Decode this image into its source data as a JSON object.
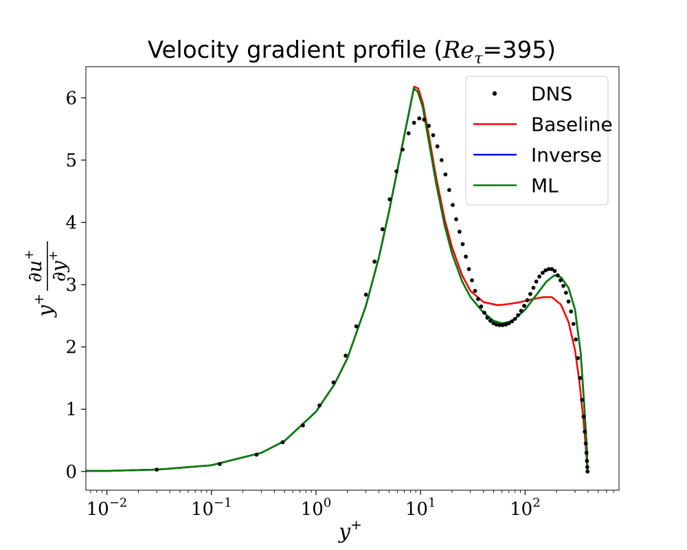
{
  "chart_data": {
    "type": "line",
    "title": {
      "prefix": "Velocity gradient profile (",
      "math": "Re",
      "math_sub": "τ",
      "suffix": "=395)"
    },
    "xlabel": {
      "base": "y",
      "sup": "+"
    },
    "ylabel": {
      "factor": "y",
      "factor_sup": "+",
      "num": "∂u",
      "num_sup": "+",
      "den": "∂y",
      "den_sup": "+"
    },
    "x_scale": "log",
    "xlim": [
      0.0063,
      790
    ],
    "ylim": [
      -0.3,
      6.5
    ],
    "x_ticks": [
      {
        "value": 0.01,
        "base": "10",
        "exp": "−2"
      },
      {
        "value": 0.1,
        "base": "10",
        "exp": "−1"
      },
      {
        "value": 1,
        "base": "10",
        "exp": "0"
      },
      {
        "value": 10,
        "base": "10",
        "exp": "1"
      },
      {
        "value": 100,
        "base": "10",
        "exp": "2"
      }
    ],
    "y_ticks": [
      0,
      1,
      2,
      3,
      4,
      5,
      6
    ],
    "grid": false,
    "legend_position": "top-right",
    "series": [
      {
        "name": "DNS",
        "style": "markers",
        "color": "#000000",
        "x": [
          0.03,
          0.12,
          0.27,
          0.48,
          0.75,
          1.08,
          1.47,
          1.92,
          2.43,
          3.0,
          3.63,
          4.32,
          5.07,
          5.88,
          6.75,
          7.68,
          8.67,
          9.72,
          10.8,
          12.0,
          13.2,
          14.5,
          15.9,
          17.3,
          18.8,
          20.3,
          21.9,
          23.6,
          25.3,
          27.1,
          29.0,
          31.0,
          33.2,
          35.5,
          38.0,
          40.7,
          43.5,
          46.5,
          49.8,
          53.2,
          57.0,
          61.0,
          65.3,
          69.9,
          74.8,
          80.0,
          85.6,
          91.6,
          98.0,
          105,
          112,
          120,
          128,
          137,
          147,
          157,
          168,
          180,
          192,
          205,
          218,
          232,
          246,
          260,
          275,
          290,
          305,
          320,
          335,
          350,
          362,
          372,
          380,
          386,
          390,
          393,
          395
        ],
        "y": [
          0.03,
          0.12,
          0.27,
          0.47,
          0.74,
          1.06,
          1.43,
          1.86,
          2.33,
          2.84,
          3.37,
          3.89,
          4.37,
          4.82,
          5.17,
          5.43,
          5.6,
          5.67,
          5.65,
          5.55,
          5.4,
          5.22,
          5.0,
          4.77,
          4.52,
          4.28,
          4.05,
          3.85,
          3.65,
          3.45,
          3.25,
          3.07,
          2.9,
          2.77,
          2.65,
          2.55,
          2.47,
          2.42,
          2.38,
          2.36,
          2.35,
          2.35,
          2.36,
          2.38,
          2.41,
          2.45,
          2.51,
          2.58,
          2.66,
          2.75,
          2.85,
          2.95,
          3.05,
          3.13,
          3.19,
          3.23,
          3.25,
          3.25,
          3.22,
          3.15,
          3.07,
          2.98,
          2.87,
          2.73,
          2.57,
          2.37,
          2.12,
          1.82,
          1.5,
          1.15,
          0.88,
          0.64,
          0.45,
          0.3,
          0.17,
          0.07,
          0.0
        ]
      },
      {
        "name": "Baseline",
        "style": "line",
        "color": "#ff0000",
        "x": [
          0.0063,
          0.01,
          0.03,
          0.1,
          0.3,
          0.5,
          1.0,
          1.5,
          2.0,
          3.0,
          4.0,
          5.0,
          6.0,
          7.0,
          8.0,
          8.7,
          9.5,
          10.5,
          12.0,
          14.0,
          17.0,
          20.0,
          25.0,
          30.0,
          40.0,
          55.0,
          70.0,
          90.0,
          120.0,
          150.0,
          180.0,
          220.0,
          260.0,
          300.0,
          330.0,
          360.0,
          380.0,
          395.0
        ],
        "y": [
          0.01,
          0.01,
          0.03,
          0.1,
          0.3,
          0.49,
          0.96,
          1.4,
          1.82,
          2.66,
          3.44,
          4.18,
          4.84,
          5.4,
          5.88,
          6.18,
          6.15,
          5.92,
          5.4,
          4.75,
          4.05,
          3.6,
          3.15,
          2.9,
          2.72,
          2.67,
          2.69,
          2.72,
          2.77,
          2.8,
          2.8,
          2.68,
          2.4,
          1.95,
          1.45,
          0.85,
          0.4,
          0.0
        ]
      },
      {
        "name": "Inverse",
        "style": "line",
        "color": "#0000ff",
        "x": [
          0.0063,
          0.01,
          0.03,
          0.1,
          0.3,
          0.5,
          1.0,
          1.5,
          2.0,
          3.0,
          4.0,
          5.0,
          6.0,
          7.0,
          8.0,
          8.6,
          9.4,
          10.5,
          12.0,
          14.0,
          17.0,
          20.0,
          25.0,
          30.0,
          40.0,
          50.0,
          60.0,
          70.0,
          80.0,
          100.0,
          130.0,
          160.0,
          190.0,
          220.0,
          260.0,
          300.0,
          340.0,
          370.0,
          390.0,
          395.0
        ],
        "y": [
          0.01,
          0.01,
          0.03,
          0.1,
          0.3,
          0.49,
          0.96,
          1.4,
          1.82,
          2.66,
          3.44,
          4.18,
          4.84,
          5.4,
          5.88,
          6.15,
          6.1,
          5.85,
          5.3,
          4.65,
          3.95,
          3.5,
          3.05,
          2.8,
          2.55,
          2.42,
          2.38,
          2.4,
          2.45,
          2.6,
          2.85,
          3.05,
          3.15,
          3.12,
          2.95,
          2.6,
          1.9,
          1.0,
          0.35,
          0.0
        ]
      },
      {
        "name": "ML",
        "style": "line",
        "color": "#008000",
        "x": [
          0.0063,
          0.01,
          0.03,
          0.1,
          0.3,
          0.5,
          1.0,
          1.5,
          2.0,
          3.0,
          4.0,
          5.0,
          6.0,
          7.0,
          8.0,
          8.6,
          9.4,
          10.5,
          12.0,
          14.0,
          17.0,
          20.0,
          25.0,
          30.0,
          40.0,
          50.0,
          60.0,
          70.0,
          80.0,
          100.0,
          130.0,
          160.0,
          190.0,
          220.0,
          260.0,
          300.0,
          340.0,
          370.0,
          390.0,
          395.0
        ],
        "y": [
          0.01,
          0.01,
          0.03,
          0.1,
          0.3,
          0.49,
          0.96,
          1.4,
          1.82,
          2.66,
          3.44,
          4.18,
          4.84,
          5.4,
          5.88,
          6.15,
          6.1,
          5.85,
          5.3,
          4.65,
          3.95,
          3.5,
          3.05,
          2.8,
          2.55,
          2.42,
          2.38,
          2.4,
          2.45,
          2.6,
          2.85,
          3.05,
          3.15,
          3.12,
          2.95,
          2.6,
          1.9,
          1.0,
          0.35,
          0.0
        ]
      }
    ]
  }
}
